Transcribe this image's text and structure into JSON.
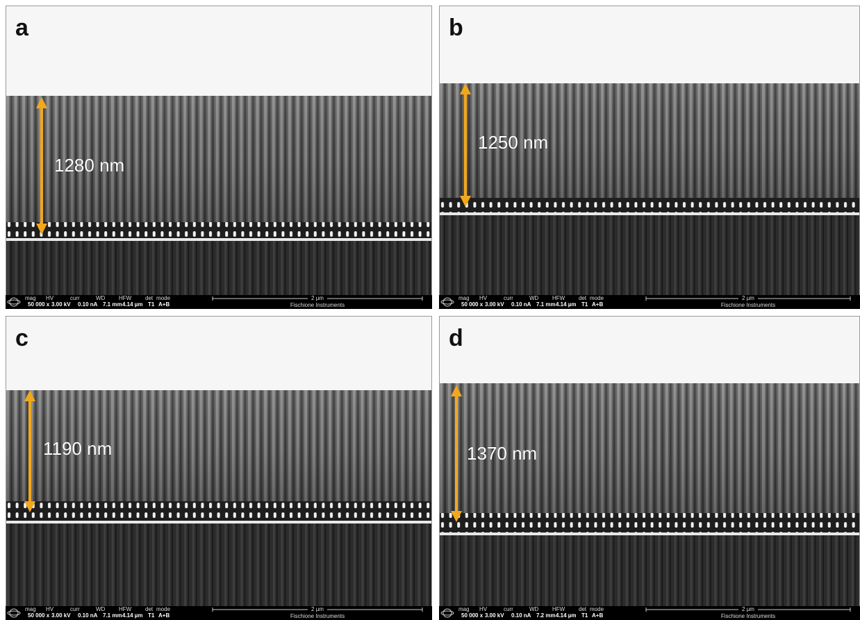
{
  "panels": [
    {
      "label": "a",
      "measurement": "1280 nm",
      "info_bar": {
        "headers": [
          "mag",
          "HV",
          "curr",
          "WD",
          "HFW",
          "det",
          "mode"
        ],
        "values": [
          "50 000 x",
          "3.00 kV",
          "0.10 nA",
          "7.1 mm",
          "4.14 µm",
          "T1",
          "A+B"
        ],
        "scale_label": "2 µm",
        "credit": "Fischione Instruments"
      }
    },
    {
      "label": "b",
      "measurement": "1250 nm",
      "info_bar": {
        "headers": [
          "mag",
          "HV",
          "curr",
          "WD",
          "HFW",
          "det",
          "mode"
        ],
        "values": [
          "50 000 x",
          "3.00 kV",
          "0.10 nA",
          "7.1 mm",
          "4.14 µm",
          "T1",
          "A+B"
        ],
        "scale_label": "2 µm",
        "credit": "Fischione Instruments"
      }
    },
    {
      "label": "c",
      "measurement": "1190 nm",
      "info_bar": {
        "headers": [
          "mag",
          "HV",
          "curr",
          "WD",
          "HFW",
          "det",
          "mode"
        ],
        "values": [
          "50 000 x",
          "3.00 kV",
          "0.10 nA",
          "7.1 mm",
          "4.14 µm",
          "T1",
          "A+B"
        ],
        "scale_label": "2 µm",
        "credit": "Fischione Instruments"
      }
    },
    {
      "label": "d",
      "measurement": "1370 nm",
      "info_bar": {
        "headers": [
          "mag",
          "HV",
          "curr",
          "WD",
          "HFW",
          "det",
          "mode"
        ],
        "values": [
          "50 000 x",
          "3.00 kV",
          "0.10 nA",
          "7.2 mm",
          "4.14 µm",
          "T1",
          "A+B"
        ],
        "scale_label": "2 µm",
        "credit": "Fischione Instruments"
      }
    }
  ]
}
